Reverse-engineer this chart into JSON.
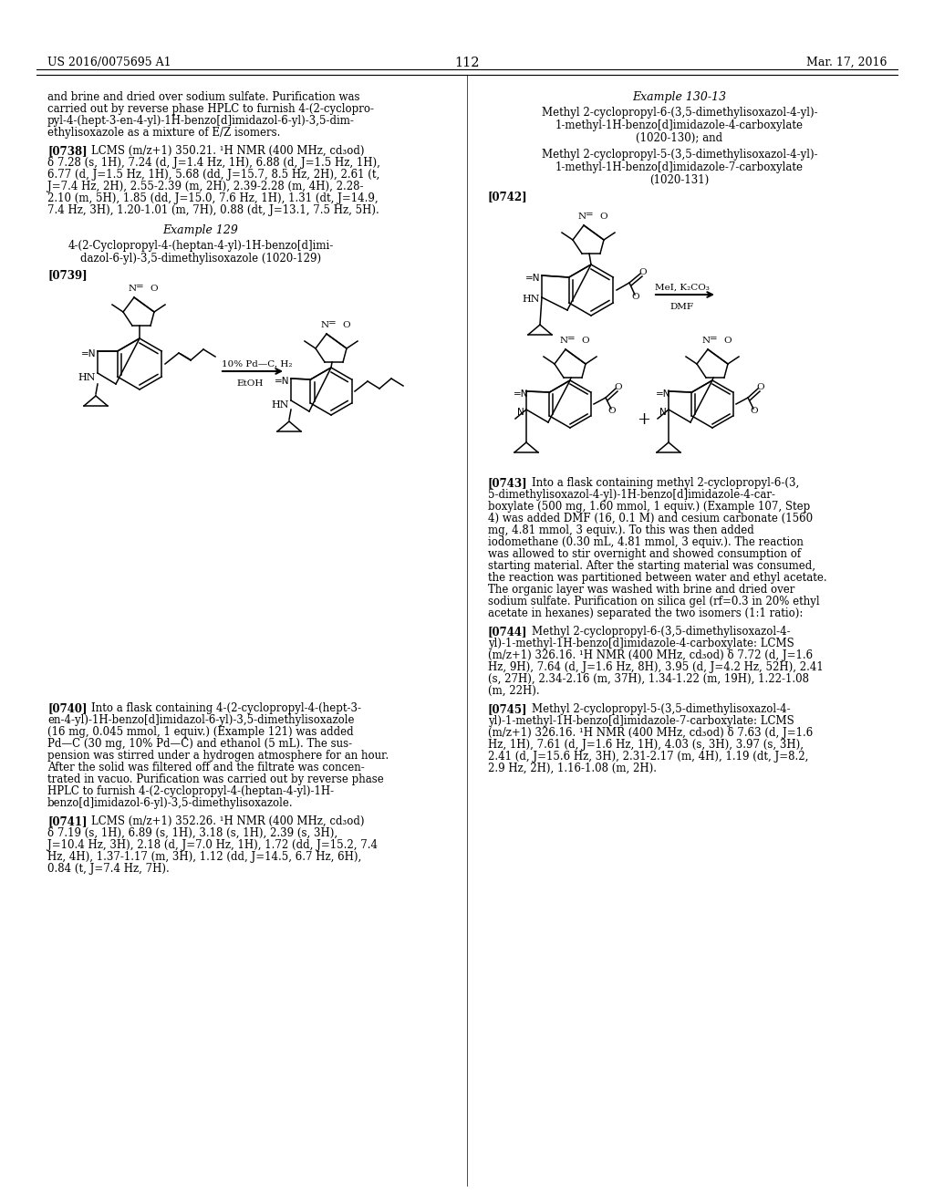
{
  "background_color": "#ffffff",
  "header_left": "US 2016/0075695 A1",
  "header_center": "112",
  "header_right": "Mar. 17, 2016"
}
